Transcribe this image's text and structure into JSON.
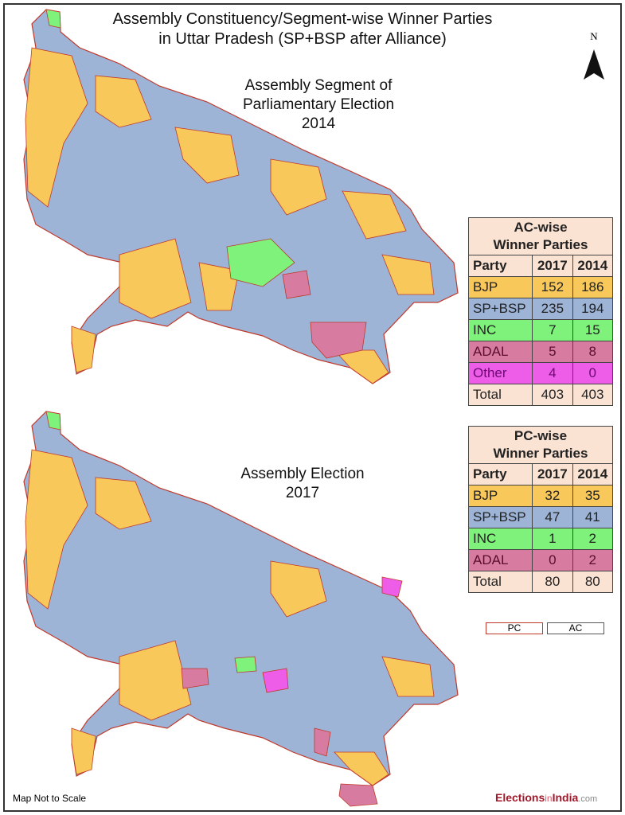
{
  "title": [
    "Assembly Constituency/Segment-wise Winner Parties",
    "in Uttar Pradesh (SP+BSP after Alliance)"
  ],
  "north_label": "N",
  "maps": [
    {
      "subtitle": [
        "Assembly Segment of",
        "Parliamentary Election",
        "2014"
      ]
    },
    {
      "subtitle": [
        "Assembly Election",
        "2017"
      ]
    }
  ],
  "colors": {
    "BJP": "#f9c85a",
    "SP+BSP": "#9db4d6",
    "INC": "#7ef27a",
    "ADAL": "#d77ba0",
    "Other": "#ee5de8",
    "header": "#fbe3d3",
    "pc_border": "#c0392b",
    "ac_border": "#555555"
  },
  "ac_table": {
    "title": [
      "AC-wise",
      "Winner Parties"
    ],
    "columns": [
      "Party",
      "2017",
      "2014"
    ],
    "rows": [
      {
        "party": "BJP",
        "y2017": "152",
        "y2014": "186"
      },
      {
        "party": "SP+BSP",
        "y2017": "235",
        "y2014": "194"
      },
      {
        "party": "INC",
        "y2017": "7",
        "y2014": "15"
      },
      {
        "party": "ADAL",
        "y2017": "5",
        "y2014": "8"
      },
      {
        "party": "Other",
        "y2017": "4",
        "y2014": "0"
      },
      {
        "party": "Total",
        "y2017": "403",
        "y2014": "403"
      }
    ]
  },
  "pc_table": {
    "title": [
      "PC-wise",
      "Winner Parties"
    ],
    "columns": [
      "Party",
      "2017",
      "2014"
    ],
    "rows": [
      {
        "party": "BJP",
        "y2017": "32",
        "y2014": "35"
      },
      {
        "party": "SP+BSP",
        "y2017": "47",
        "y2014": "41"
      },
      {
        "party": "INC",
        "y2017": "1",
        "y2014": "2"
      },
      {
        "party": "ADAL",
        "y2017": "0",
        "y2014": "2"
      },
      {
        "party": "Total",
        "y2017": "80",
        "y2014": "80"
      }
    ]
  },
  "legend": {
    "pc": "PC",
    "ac": "AC"
  },
  "footer": {
    "note": "Map Not to Scale",
    "brand_a": "Elections",
    "brand_b": "in",
    "brand_c": "India",
    ".com": ".com"
  }
}
